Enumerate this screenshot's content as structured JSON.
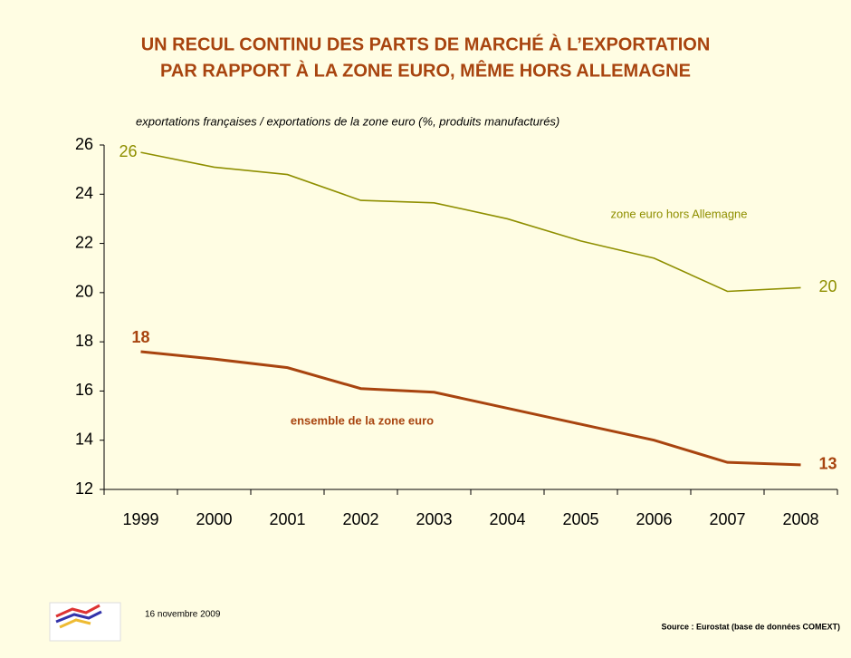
{
  "chart_data": {
    "type": "line",
    "title": [
      "UN RECUL CONTINU DES PARTS DE MARCHÉ À L’EXPORTATION",
      "PAR RAPPORT À LA ZONE EURO, MÊME HORS ALLEMAGNE"
    ],
    "subtitle": "exportations françaises / exportations de la zone euro (%, produits manufacturés)",
    "categories": [
      "1999",
      "2000",
      "2001",
      "2002",
      "2003",
      "2004",
      "2005",
      "2006",
      "2007",
      "2008"
    ],
    "series": [
      {
        "name": "zone euro hors Allemagne",
        "color": "#8f8f00",
        "values": [
          25.7,
          25.1,
          24.8,
          23.75,
          23.65,
          23.0,
          22.1,
          21.4,
          20.05,
          20.2
        ],
        "value_labels": [
          "26",
          null,
          null,
          null,
          null,
          null,
          null,
          null,
          null,
          "20"
        ]
      },
      {
        "name": "ensemble de la zone euro",
        "color": "#a8440f",
        "values": [
          17.6,
          17.3,
          16.95,
          16.1,
          15.95,
          15.3,
          14.65,
          14.0,
          13.1,
          13.0
        ],
        "value_labels": [
          "18",
          null,
          null,
          null,
          null,
          null,
          null,
          null,
          null,
          "13"
        ]
      }
    ],
    "ylim": [
      12,
      26
    ],
    "yticks": [
      12,
      14,
      16,
      18,
      20,
      22,
      24,
      26
    ],
    "grid": false,
    "date": "16 novembre 2009",
    "source": "Source : Eurostat (base de données COMEXT)"
  }
}
